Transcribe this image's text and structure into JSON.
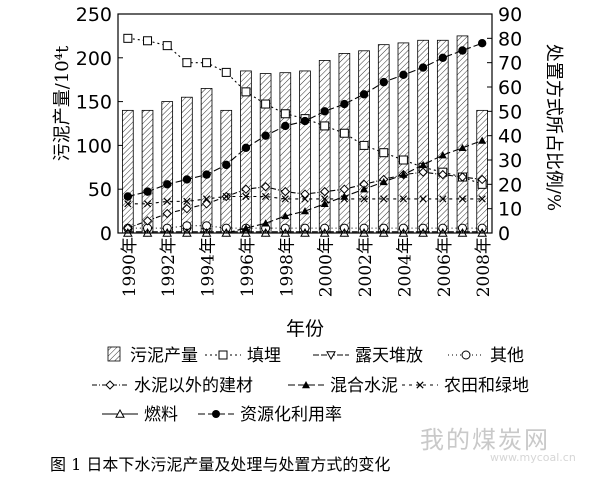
{
  "chart_data": {
    "type": "bar+line",
    "xlabel": "年份",
    "ylabel_left": "污泥产量/10⁴t",
    "ylabel_right": "处置方式所占比例/%",
    "ylim_left": [
      0,
      250
    ],
    "ylim_right": [
      0,
      90
    ],
    "yticks_left": [
      0,
      50,
      100,
      150,
      200,
      250
    ],
    "yticks_right": [
      0,
      10,
      20,
      30,
      40,
      50,
      60,
      70,
      80,
      90
    ],
    "x": [
      1990,
      1991,
      1992,
      1993,
      1994,
      1995,
      1996,
      1997,
      1998,
      1999,
      2000,
      2001,
      2002,
      2003,
      2004,
      2005,
      2006,
      2007,
      2008
    ],
    "xtick_labels": [
      "1990年",
      "1992年",
      "1994年",
      "1996年",
      "1998年",
      "2000年",
      "2002年",
      "2004年",
      "2006年",
      "2008年"
    ],
    "bars": {
      "name": "污泥产量",
      "axis": "left",
      "values": [
        140,
        140,
        150,
        155,
        165,
        140,
        185,
        182,
        183,
        185,
        197,
        205,
        208,
        215,
        217,
        220,
        220,
        225,
        140
      ]
    },
    "series": [
      {
        "name": "填埋",
        "marker": "open-square",
        "axis": "right",
        "values": [
          80,
          79,
          77,
          70,
          70,
          66,
          58,
          53,
          49,
          47,
          44,
          41,
          36,
          33,
          30,
          27,
          25,
          23,
          20
        ]
      },
      {
        "name": "露天堆放",
        "marker": "open-triangle-down",
        "axis": "right",
        "values": [
          0.5,
          0.5,
          0.5,
          0.5,
          0.5,
          0.5,
          0.5,
          0.5,
          0.5,
          0.5,
          0.5,
          0.5,
          0.5,
          0.5,
          0.5,
          0.5,
          0.5,
          0.5,
          0.5
        ]
      },
      {
        "name": "其他",
        "marker": "open-circle",
        "axis": "right",
        "values": [
          2,
          2,
          2,
          3,
          3,
          2,
          2,
          2,
          2,
          2,
          2,
          2,
          2,
          2,
          2,
          2,
          2,
          2,
          2
        ]
      },
      {
        "name": "水泥以外的建材",
        "marker": "open-diamond",
        "axis": "right",
        "values": [
          2,
          5,
          8,
          10,
          12,
          15,
          18,
          19,
          17,
          16,
          17,
          18,
          20,
          22,
          24,
          25,
          24,
          23,
          22
        ]
      },
      {
        "name": "混合水泥",
        "marker": "filled-triangle",
        "axis": "right",
        "values": [
          0,
          0,
          0,
          0,
          0,
          0,
          2,
          4,
          7,
          9,
          12,
          15,
          18,
          21,
          24,
          28,
          32,
          35,
          38
        ]
      },
      {
        "name": "农田和绿地",
        "marker": "x",
        "axis": "right",
        "values": [
          12,
          12,
          13,
          13,
          14,
          15,
          15,
          15,
          14,
          14,
          14,
          14,
          14,
          14,
          14,
          14,
          14,
          14,
          14
        ]
      },
      {
        "name": "燃料",
        "marker": "open-triangle",
        "axis": "right",
        "values": [
          0,
          0,
          0,
          0,
          0,
          0,
          0,
          0,
          0,
          0,
          0,
          0,
          0,
          0,
          0,
          0,
          0,
          0,
          0
        ]
      },
      {
        "name": "资源化利用率",
        "marker": "filled-circle",
        "axis": "right",
        "values": [
          15,
          17,
          20,
          22,
          24,
          28,
          35,
          40,
          44,
          46,
          50,
          53,
          57,
          62,
          65,
          68,
          72,
          75,
          78
        ]
      }
    ]
  },
  "legend": [
    {
      "label": "污泥产量",
      "marker": "bar"
    },
    {
      "label": "填埋",
      "marker": "open-square"
    },
    {
      "label": "露天堆放",
      "marker": "open-triangle-down"
    },
    {
      "label": "其他",
      "marker": "open-circle"
    },
    {
      "label": "水泥以外的建材",
      "marker": "open-diamond"
    },
    {
      "label": "混合水泥",
      "marker": "filled-triangle"
    },
    {
      "label": "农田和绿地",
      "marker": "x"
    },
    {
      "label": "燃料",
      "marker": "open-triangle"
    },
    {
      "label": "资源化利用率",
      "marker": "filled-circle"
    }
  ],
  "caption": "图 1 日本下水污泥产量及处理与处置方式的变化",
  "watermark": {
    "text": "我的煤炭网",
    "url": "www.mycoal.cn"
  }
}
